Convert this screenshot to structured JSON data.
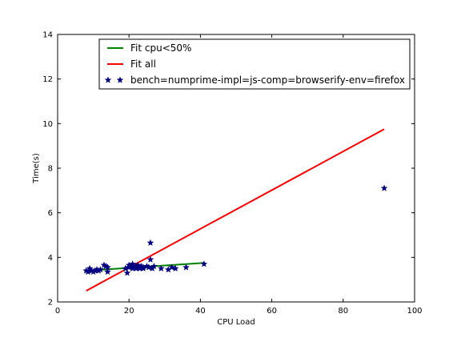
{
  "chart_data": {
    "type": "scatter",
    "title": "",
    "xlabel": "CPU Load",
    "ylabel": "Time(s)",
    "xlim": [
      0,
      100
    ],
    "ylim": [
      2,
      14
    ],
    "xticks": [
      0,
      20,
      40,
      60,
      80,
      100
    ],
    "yticks": [
      2,
      4,
      6,
      8,
      10,
      12,
      14
    ],
    "grid": false,
    "legend_position": "top-center",
    "series": [
      {
        "name": "Fit cpu<50%",
        "kind": "line",
        "color": "#008000",
        "x": [
          8,
          41
        ],
        "y": [
          3.4,
          3.75
        ]
      },
      {
        "name": "Fit all",
        "kind": "line",
        "color": "#ff0000",
        "x": [
          8,
          91.5
        ],
        "y": [
          2.5,
          9.75
        ]
      },
      {
        "name": "bench=numprime-impl=js-comp=browserify-env=firefox",
        "kind": "scatter",
        "marker": "star",
        "color": "#000080",
        "x": [
          8,
          8.5,
          9,
          9.5,
          10,
          10.5,
          11,
          11.5,
          12,
          13,
          13.5,
          14,
          14,
          19,
          19.5,
          20,
          20,
          20.5,
          21,
          21,
          21.5,
          22,
          22,
          22.5,
          23,
          23,
          23.5,
          24,
          24,
          25,
          25.5,
          26,
          26,
          26.5,
          27,
          29,
          31,
          32,
          33,
          36,
          41,
          91.5
        ],
        "y": [
          3.4,
          3.35,
          3.5,
          3.4,
          3.35,
          3.4,
          3.45,
          3.4,
          3.45,
          3.65,
          3.6,
          3.55,
          3.35,
          3.5,
          3.3,
          3.65,
          3.55,
          3.6,
          3.5,
          3.7,
          3.55,
          3.6,
          3.5,
          3.65,
          3.55,
          3.5,
          3.6,
          3.55,
          3.5,
          3.6,
          3.55,
          4.65,
          3.9,
          3.5,
          3.6,
          3.5,
          3.45,
          3.55,
          3.5,
          3.55,
          3.7,
          7.1
        ]
      }
    ]
  }
}
